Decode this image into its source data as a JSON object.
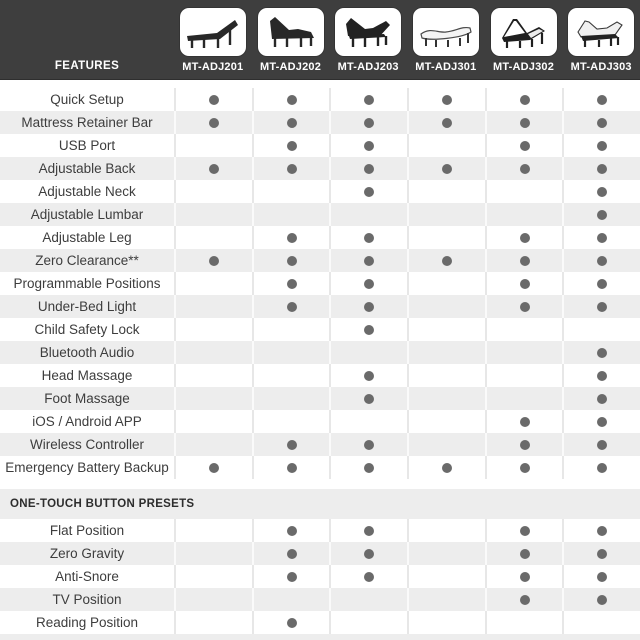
{
  "header": {
    "features_label": "FEATURES",
    "models": [
      {
        "name": "MT-ADJ201",
        "icon": "bed-flat-head-raised-icon"
      },
      {
        "name": "MT-ADJ202",
        "icon": "bed-head-raised-dark-icon"
      },
      {
        "name": "MT-ADJ203",
        "icon": "bed-head-foot-raised-dark-icon"
      },
      {
        "name": "MT-ADJ301",
        "icon": "bed-flat-light-icon"
      },
      {
        "name": "MT-ADJ302",
        "icon": "bed-head-foot-raised-light-icon"
      },
      {
        "name": "MT-ADJ303",
        "icon": "bed-head-foot-raised-pillow-icon"
      }
    ]
  },
  "table": {
    "feature_rows": [
      {
        "label": "Quick Setup",
        "values": [
          true,
          true,
          true,
          true,
          true,
          true
        ]
      },
      {
        "label": "Mattress Retainer Bar",
        "values": [
          true,
          true,
          true,
          true,
          true,
          true
        ]
      },
      {
        "label": "USB Port",
        "values": [
          false,
          true,
          true,
          false,
          true,
          true
        ]
      },
      {
        "label": "Adjustable Back",
        "values": [
          true,
          true,
          true,
          true,
          true,
          true
        ]
      },
      {
        "label": "Adjustable Neck",
        "values": [
          false,
          false,
          true,
          false,
          false,
          true
        ]
      },
      {
        "label": "Adjustable Lumbar",
        "values": [
          false,
          false,
          false,
          false,
          false,
          true
        ]
      },
      {
        "label": "Adjustable Leg",
        "values": [
          false,
          true,
          true,
          false,
          true,
          true
        ]
      },
      {
        "label": "Zero Clearance**",
        "values": [
          true,
          true,
          true,
          true,
          true,
          true
        ]
      },
      {
        "label": "Programmable Positions",
        "values": [
          false,
          true,
          true,
          false,
          true,
          true
        ]
      },
      {
        "label": "Under-Bed Light",
        "values": [
          false,
          true,
          true,
          false,
          true,
          true
        ]
      },
      {
        "label": "Child Safety Lock",
        "values": [
          false,
          false,
          true,
          false,
          false,
          false
        ]
      },
      {
        "label": "Bluetooth Audio",
        "values": [
          false,
          false,
          false,
          false,
          false,
          true
        ]
      },
      {
        "label": "Head Massage",
        "values": [
          false,
          false,
          true,
          false,
          false,
          true
        ]
      },
      {
        "label": "Foot Massage",
        "values": [
          false,
          false,
          true,
          false,
          false,
          true
        ]
      },
      {
        "label": "iOS / Android APP",
        "values": [
          false,
          false,
          false,
          false,
          true,
          true
        ]
      },
      {
        "label": "Wireless Controller",
        "values": [
          false,
          true,
          true,
          false,
          true,
          true
        ]
      },
      {
        "label": "Emergency Battery Backup",
        "values": [
          true,
          true,
          true,
          true,
          true,
          true
        ]
      }
    ],
    "section_header": "ONE-TOUCH BUTTON PRESETS",
    "preset_rows": [
      {
        "label": "Flat Position",
        "values": [
          false,
          true,
          true,
          false,
          true,
          true
        ]
      },
      {
        "label": "Zero Gravity",
        "values": [
          false,
          true,
          true,
          false,
          true,
          true
        ]
      },
      {
        "label": "Anti-Snore",
        "values": [
          false,
          true,
          true,
          false,
          true,
          true
        ]
      },
      {
        "label": "TV Position",
        "values": [
          false,
          false,
          false,
          false,
          true,
          true
        ]
      },
      {
        "label": "Reading Position",
        "values": [
          false,
          true,
          false,
          false,
          false,
          false
        ]
      }
    ]
  },
  "colors": {
    "header_bg": "#3e3e3e",
    "stripe_bg": "#ededed",
    "dot": "#6a6a6a",
    "label_text": "#3d3d3d",
    "header_text": "#ffffff"
  }
}
